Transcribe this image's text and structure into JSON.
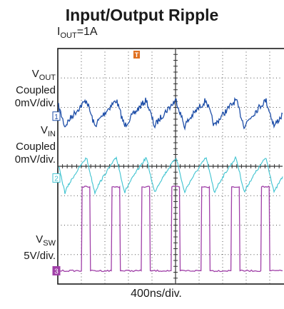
{
  "title": "Input/Output Ripple",
  "condition": {
    "symbol": "I",
    "sub": "OUT",
    "rest": "=1A"
  },
  "channels": [
    {
      "id": "vout",
      "marker": "1",
      "color": "#1f4fa8",
      "label": {
        "symbol": "V",
        "sub": "OUT",
        "line2": "Coupled",
        "line3": "0mV/div."
      }
    },
    {
      "id": "vin",
      "marker": "2",
      "color": "#3fc3d0",
      "label": {
        "symbol": "V",
        "sub": "IN",
        "line2": "Coupled",
        "line3": "0mV/div."
      }
    },
    {
      "id": "vsw",
      "marker": "3",
      "color": "#a040a8",
      "label": {
        "symbol": "V",
        "sub": "SW",
        "line2": "5V/div.",
        "line3": ""
      }
    }
  ],
  "trigger_marker": {
    "label": "T",
    "color": "#e07020"
  },
  "timebase": "400ns/div.",
  "chart_data": {
    "type": "line",
    "title": "Input/Output Ripple",
    "xlabel": "400ns/div.",
    "grid": true,
    "x_divisions": 10,
    "y_divisions": 8,
    "switching_period_divisions": 1.27,
    "switching_duty": 0.28,
    "series": [
      {
        "name": "VOUT",
        "waveform": "ripple-sawtooth",
        "center_div": 5.8,
        "amplitude_div": 0.45
      },
      {
        "name": "VIN",
        "waveform": "ripple-sawtooth",
        "center_div": 3.7,
        "amplitude_div": 0.6
      },
      {
        "name": "VSW",
        "waveform": "square",
        "low_div": 0.45,
        "high_div": 3.3
      }
    ]
  }
}
